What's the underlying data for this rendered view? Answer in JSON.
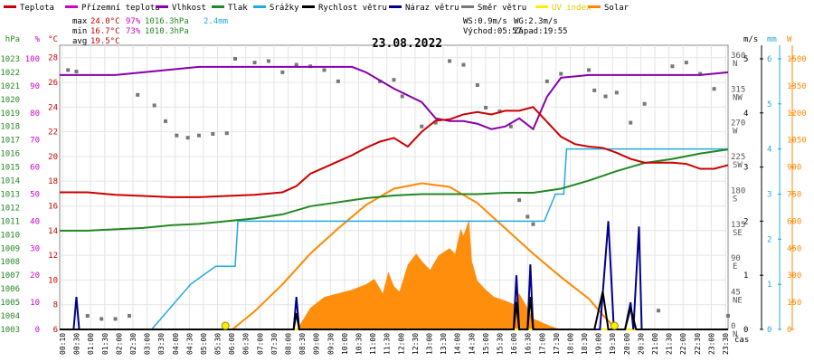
{
  "legend": [
    {
      "label": "Teplota",
      "color": "#cc0000"
    },
    {
      "label": "Přízemní teplota",
      "color": "#cc00cc"
    },
    {
      "label": "Vlhkost",
      "color": "#8800aa"
    },
    {
      "label": "Tlak",
      "color": "#228822"
    },
    {
      "label": "Srážky",
      "color": "#22aadd"
    },
    {
      "label": "Rychlost větru",
      "color": "#000000"
    },
    {
      "label": "Náraz větru",
      "color": "#00008b"
    },
    {
      "label": "Směr větru",
      "color": "#777777"
    },
    {
      "label": "UV index",
      "color": "#ffee00"
    },
    {
      "label": "Solar",
      "color": "#ff8800"
    }
  ],
  "stats": {
    "max_label": "max",
    "max_temp": "24.0°C",
    "max_hum": "97%",
    "max_press": "1016.3hPa",
    "max_rain": "2.4mm",
    "min_label": "min",
    "min_temp": "16.7°C",
    "min_hum": "73%",
    "min_press": "1010.3hPa",
    "avg_label": "avg",
    "avg_temp": "19.5°C"
  },
  "wind_info": {
    "ws": "WS:0.9m/s",
    "wg": "WG:2.3m/s",
    "sunrise": "Východ:05:57",
    "sunset": "Západ:19:55"
  },
  "colors": {
    "uv": "#ffee00"
  },
  "chart_data": {
    "type": "line",
    "title": "23.08.2022",
    "xlabel": "čas",
    "x_ticks": [
      "00:10",
      "00:30",
      "01:00",
      "01:30",
      "02:00",
      "02:30",
      "03:00",
      "03:30",
      "04:00",
      "04:30",
      "05:00",
      "05:30",
      "06:00",
      "06:30",
      "07:00",
      "07:30",
      "08:00",
      "08:30",
      "09:00",
      "09:30",
      "10:00",
      "10:30",
      "11:00",
      "11:30",
      "12:00",
      "12:30",
      "13:00",
      "13:30",
      "14:00",
      "14:30",
      "15:00",
      "15:30",
      "16:00",
      "16:30",
      "17:00",
      "17:30",
      "18:00",
      "18:30",
      "19:00",
      "19:30",
      "20:00",
      "20:30",
      "21:00",
      "21:30",
      "22:00",
      "22:30",
      "23:00",
      "23:30"
    ],
    "xlim": [
      0,
      24
    ],
    "axes": {
      "pressure": {
        "unit": "hPa",
        "ticks": [
          1003,
          1004,
          1005,
          1006,
          1007,
          1008,
          1009,
          1010,
          1011,
          1012,
          1013,
          1014,
          1015,
          1016,
          1017,
          1018,
          1019,
          1020,
          1021,
          1022,
          1023
        ],
        "range": [
          1003,
          1024
        ],
        "color": "#228822"
      },
      "humidity": {
        "unit": "%",
        "ticks": [
          0,
          10,
          20,
          30,
          40,
          50,
          60,
          70,
          80,
          90,
          100
        ],
        "range": [
          0,
          105
        ],
        "color": "#cc00cc"
      },
      "temperature": {
        "unit": "°C",
        "ticks": [
          6,
          8,
          10,
          12,
          14,
          16,
          18,
          20,
          22,
          24,
          26,
          28
        ],
        "range": [
          6,
          29
        ],
        "color": "#cc0000"
      },
      "wind_direction": {
        "ticks": [
          "0 N",
          "45 NE",
          "90 E",
          "135 SE",
          "180 S",
          "225 SW",
          "270 W",
          "315 NW",
          "360 N"
        ],
        "range": [
          0,
          378
        ]
      },
      "wind_speed": {
        "unit": "m/s",
        "ticks": [
          0,
          1,
          2,
          3,
          4,
          5
        ],
        "range": [
          0,
          5.25
        ],
        "color": "#000000"
      },
      "rain": {
        "unit": "mm",
        "ticks": [
          0,
          1,
          2,
          3,
          4,
          5,
          6
        ],
        "range": [
          0,
          6.3
        ],
        "color": "#22aadd"
      },
      "solar": {
        "unit": "W",
        "ticks": [
          0,
          150,
          300,
          450,
          600,
          750,
          900,
          1050,
          1200,
          1350,
          1500
        ],
        "range": [
          0,
          1575
        ],
        "color": "#ff8800"
      }
    },
    "series": [
      {
        "name": "Teplota",
        "axis": "temperature",
        "color": "#cc0000",
        "points": [
          [
            0,
            17.1
          ],
          [
            1,
            17.1
          ],
          [
            2,
            16.9
          ],
          [
            3,
            16.8
          ],
          [
            4,
            16.7
          ],
          [
            5,
            16.7
          ],
          [
            6,
            16.8
          ],
          [
            7,
            16.9
          ],
          [
            8,
            17.1
          ],
          [
            8.5,
            17.6
          ],
          [
            9,
            18.6
          ],
          [
            9.5,
            19.1
          ],
          [
            10,
            19.6
          ],
          [
            10.5,
            20.1
          ],
          [
            11,
            20.7
          ],
          [
            11.5,
            21.2
          ],
          [
            12,
            21.5
          ],
          [
            12.5,
            20.8
          ],
          [
            13,
            22.0
          ],
          [
            13.5,
            22.9
          ],
          [
            14,
            23.0
          ],
          [
            14.5,
            23.4
          ],
          [
            15,
            23.6
          ],
          [
            15.5,
            23.4
          ],
          [
            16,
            23.7
          ],
          [
            16.5,
            23.7
          ],
          [
            17,
            24.0
          ],
          [
            17.5,
            22.8
          ],
          [
            18,
            21.6
          ],
          [
            18.5,
            21.0
          ],
          [
            19,
            20.8
          ],
          [
            19.5,
            20.7
          ],
          [
            20,
            20.3
          ],
          [
            20.5,
            19.8
          ],
          [
            21,
            19.5
          ],
          [
            21.5,
            19.5
          ],
          [
            22,
            19.5
          ],
          [
            22.5,
            19.4
          ],
          [
            23,
            19.0
          ],
          [
            23.5,
            19.0
          ],
          [
            24,
            19.3
          ]
        ]
      },
      {
        "name": "Vlhkost",
        "axis": "humidity",
        "color": "#8800aa",
        "points": [
          [
            0,
            94
          ],
          [
            1,
            94
          ],
          [
            2,
            94
          ],
          [
            3,
            95
          ],
          [
            4,
            96
          ],
          [
            5,
            97
          ],
          [
            6,
            97
          ],
          [
            7,
            97
          ],
          [
            8,
            97
          ],
          [
            9,
            97
          ],
          [
            10,
            97
          ],
          [
            10.5,
            97
          ],
          [
            11,
            95
          ],
          [
            12,
            89
          ],
          [
            13,
            84
          ],
          [
            13.5,
            78
          ],
          [
            14,
            77
          ],
          [
            14.5,
            77
          ],
          [
            15,
            76
          ],
          [
            15.5,
            74
          ],
          [
            16,
            75
          ],
          [
            16.5,
            78
          ],
          [
            17,
            74
          ],
          [
            17.5,
            86
          ],
          [
            18,
            93
          ],
          [
            19,
            94
          ],
          [
            20,
            94
          ],
          [
            21,
            94
          ],
          [
            22,
            94
          ],
          [
            23,
            94
          ],
          [
            24,
            95
          ]
        ]
      },
      {
        "name": "Tlak",
        "axis": "pressure",
        "color": "#228822",
        "points": [
          [
            0,
            1010.3
          ],
          [
            1,
            1010.3
          ],
          [
            2,
            1010.4
          ],
          [
            3,
            1010.5
          ],
          [
            4,
            1010.7
          ],
          [
            5,
            1010.8
          ],
          [
            6,
            1011.0
          ],
          [
            7,
            1011.2
          ],
          [
            8,
            1011.5
          ],
          [
            9,
            1012.1
          ],
          [
            10,
            1012.4
          ],
          [
            11,
            1012.7
          ],
          [
            12,
            1012.9
          ],
          [
            13,
            1013.0
          ],
          [
            14,
            1013.0
          ],
          [
            15,
            1013.0
          ],
          [
            16,
            1013.1
          ],
          [
            17,
            1013.1
          ],
          [
            18,
            1013.4
          ],
          [
            19,
            1014.0
          ],
          [
            20,
            1014.7
          ],
          [
            21,
            1015.3
          ],
          [
            22,
            1015.6
          ],
          [
            23,
            1016.0
          ],
          [
            24,
            1016.3
          ]
        ]
      },
      {
        "name": "Srážky",
        "axis": "rain",
        "color": "#22aadd",
        "points": [
          [
            0,
            0
          ],
          [
            3.3,
            0
          ],
          [
            4,
            0.5
          ],
          [
            4.7,
            1.0
          ],
          [
            5.6,
            1.4
          ],
          [
            6.3,
            1.4
          ],
          [
            6.4,
            2.4
          ],
          [
            9,
            2.4
          ],
          [
            12,
            2.4
          ],
          [
            15,
            2.4
          ],
          [
            17.4,
            2.4
          ],
          [
            17.8,
            3.0
          ],
          [
            18.1,
            3.0
          ],
          [
            18.2,
            4.0
          ],
          [
            21,
            4.0
          ],
          [
            24,
            4.0
          ]
        ]
      },
      {
        "name": "Rychlost větru",
        "axis": "wind_speed",
        "color": "#000000",
        "points": [
          [
            0,
            0
          ],
          [
            8.4,
            0
          ],
          [
            8.5,
            0.3
          ],
          [
            8.6,
            0
          ],
          [
            16.3,
            0
          ],
          [
            16.4,
            0.5
          ],
          [
            16.5,
            0
          ],
          [
            16.8,
            0
          ],
          [
            16.9,
            0.6
          ],
          [
            17.0,
            0
          ],
          [
            19.2,
            0
          ],
          [
            19.5,
            0.7
          ],
          [
            19.7,
            0
          ],
          [
            20.3,
            0
          ],
          [
            20.5,
            0.4
          ],
          [
            20.7,
            0
          ],
          [
            24,
            0
          ]
        ]
      },
      {
        "name": "Náraz větru",
        "axis": "wind_speed",
        "color": "#00008b",
        "points": [
          [
            0,
            0
          ],
          [
            0.5,
            0
          ],
          [
            0.6,
            0.6
          ],
          [
            0.7,
            0
          ],
          [
            8.4,
            0
          ],
          [
            8.5,
            0.6
          ],
          [
            8.6,
            0
          ],
          [
            16.3,
            0
          ],
          [
            16.4,
            1.0
          ],
          [
            16.5,
            0
          ],
          [
            16.8,
            0
          ],
          [
            16.9,
            1.2
          ],
          [
            17.0,
            0
          ],
          [
            19.4,
            0
          ],
          [
            19.7,
            2.0
          ],
          [
            19.9,
            0
          ],
          [
            20.3,
            0
          ],
          [
            20.5,
            0.5
          ],
          [
            20.6,
            0
          ],
          [
            20.8,
            1.9
          ],
          [
            20.9,
            0
          ],
          [
            24,
            0
          ]
        ]
      },
      {
        "name": "Směr větru",
        "axis": "wind_direction",
        "color": "#777777",
        "style": "dots",
        "points": [
          [
            0.3,
            345
          ],
          [
            0.6,
            343
          ],
          [
            1,
            18
          ],
          [
            1.5,
            14
          ],
          [
            2,
            14
          ],
          [
            2.5,
            18
          ],
          [
            2.8,
            312
          ],
          [
            3.4,
            298
          ],
          [
            3.8,
            277
          ],
          [
            4.2,
            258
          ],
          [
            4.6,
            255
          ],
          [
            5,
            258
          ],
          [
            5.5,
            260
          ],
          [
            6,
            261
          ],
          [
            6.3,
            360
          ],
          [
            7,
            355
          ],
          [
            7.5,
            357
          ],
          [
            8,
            342
          ],
          [
            8.5,
            352
          ],
          [
            9,
            350
          ],
          [
            9.5,
            345
          ],
          [
            10,
            330
          ],
          [
            11.5,
            330
          ],
          [
            12,
            332
          ],
          [
            12.3,
            310
          ],
          [
            13,
            270
          ],
          [
            13.5,
            275
          ],
          [
            14,
            357
          ],
          [
            14.5,
            352
          ],
          [
            15,
            325
          ],
          [
            15.3,
            295
          ],
          [
            15.8,
            290
          ],
          [
            16.2,
            270
          ],
          [
            16.5,
            172
          ],
          [
            16.8,
            150
          ],
          [
            17,
            140
          ],
          [
            17.5,
            330
          ],
          [
            18,
            340
          ],
          [
            19,
            345
          ],
          [
            19.2,
            318
          ],
          [
            19.6,
            310
          ],
          [
            20,
            315
          ],
          [
            20.5,
            275
          ],
          [
            21,
            300
          ],
          [
            21.5,
            25
          ],
          [
            22,
            350
          ],
          [
            22.5,
            355
          ],
          [
            23,
            340
          ],
          [
            23.5,
            320
          ],
          [
            24,
            18
          ]
        ]
      },
      {
        "name": "Solar",
        "axis": "solar",
        "color": "#ff8800",
        "points": [
          [
            6.2,
            0
          ],
          [
            7,
            100
          ],
          [
            8,
            250
          ],
          [
            9,
            420
          ],
          [
            10,
            560
          ],
          [
            11,
            690
          ],
          [
            12,
            780
          ],
          [
            13,
            810
          ],
          [
            14,
            790
          ],
          [
            15,
            700
          ],
          [
            16,
            560
          ],
          [
            17,
            420
          ],
          [
            18,
            290
          ],
          [
            19,
            170
          ],
          [
            19.5,
            80
          ],
          [
            20,
            0
          ]
        ]
      },
      {
        "name": "UV index",
        "axis": "solar",
        "color": "#ffee00",
        "points": [
          [
            0,
            0
          ],
          [
            24,
            0
          ]
        ]
      }
    ],
    "solar_bars": [
      [
        8.6,
        20
      ],
      [
        9,
        120
      ],
      [
        9.5,
        180
      ],
      [
        10,
        200
      ],
      [
        10.5,
        220
      ],
      [
        11,
        250
      ],
      [
        11.3,
        280
      ],
      [
        11.6,
        200
      ],
      [
        11.8,
        320
      ],
      [
        12.0,
        240
      ],
      [
        12.2,
        210
      ],
      [
        12.5,
        360
      ],
      [
        12.8,
        420
      ],
      [
        13,
        380
      ],
      [
        13.3,
        330
      ],
      [
        13.6,
        410
      ],
      [
        14,
        450
      ],
      [
        14.2,
        420
      ],
      [
        14.4,
        560
      ],
      [
        14.5,
        520
      ],
      [
        14.7,
        610
      ],
      [
        14.8,
        380
      ],
      [
        15,
        270
      ],
      [
        15.3,
        220
      ],
      [
        15.6,
        180
      ],
      [
        16,
        160
      ],
      [
        16.3,
        140
      ],
      [
        16.5,
        200
      ],
      [
        16.8,
        120
      ],
      [
        17,
        60
      ],
      [
        17.3,
        40
      ],
      [
        17.6,
        20
      ],
      [
        18,
        0
      ]
    ],
    "markers": {
      "sunrise": 5.95,
      "sunset": 19.92
    }
  }
}
